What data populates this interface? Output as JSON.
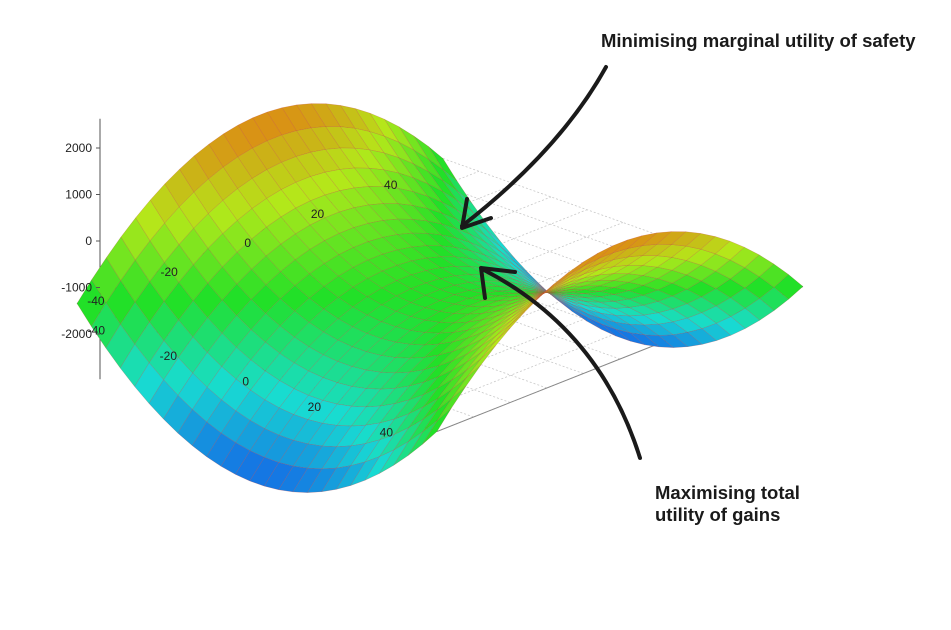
{
  "chart_data": {
    "type": "surface",
    "function": "z = x^2 - y^2 (saddle surface)",
    "x_range": [
      -50,
      50
    ],
    "y_range": [
      -50,
      50
    ],
    "zlim": [
      -2500,
      2500
    ],
    "x_ticks": [
      "-40",
      "-20",
      "0",
      "20",
      "40"
    ],
    "y_ticks": [
      "-40",
      "-20",
      "0",
      "20",
      "40"
    ],
    "z_ticks": [
      "-2000",
      "-1000",
      "0",
      "1000",
      "2000"
    ],
    "grid": true,
    "colormap": [
      "#1464e6",
      "#18dcd2",
      "#22e028",
      "#b4e81a",
      "#e08214"
    ]
  },
  "annotations": {
    "top": "Minimising marginal utility of safety",
    "bottom_line1": "Maximising total",
    "bottom_line2": "utility of gains"
  }
}
